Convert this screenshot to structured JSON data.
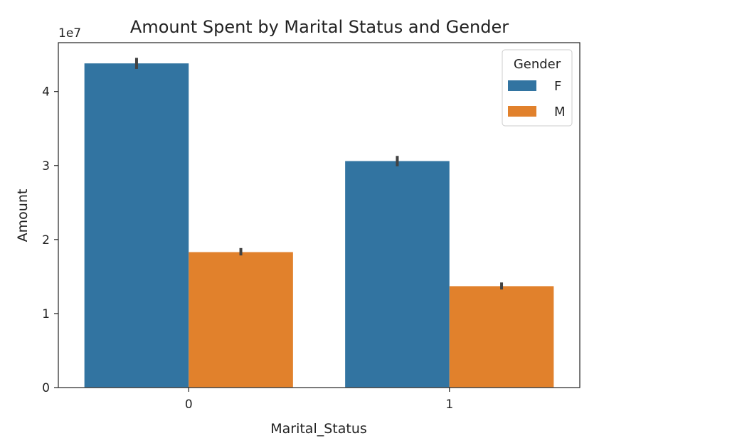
{
  "chart_data": {
    "type": "bar",
    "title": "Amount Spent by Marital Status and Gender",
    "xlabel": "Marital_Status",
    "ylabel": "Amount",
    "offset_text": "1e7",
    "categories": [
      "0",
      "1"
    ],
    "series": [
      {
        "name": "F",
        "color": "#3274a1",
        "values": [
          43800000,
          30600000
        ],
        "error": [
          [
            43050000,
            44550000
          ],
          [
            29900000,
            31300000
          ]
        ]
      },
      {
        "name": "M",
        "color": "#e1812c",
        "values": [
          18300000,
          13700000
        ],
        "error": [
          [
            17850000,
            18850000
          ],
          [
            13250000,
            14200000
          ]
        ]
      }
    ],
    "ylim": [
      0,
      46600000
    ],
    "yticks": [
      {
        "value": 0,
        "label": "0"
      },
      {
        "value": 10000000,
        "label": "1"
      },
      {
        "value": 20000000,
        "label": "2"
      },
      {
        "value": 30000000,
        "label": "3"
      },
      {
        "value": 40000000,
        "label": "4"
      }
    ],
    "legend": {
      "title": "Gender",
      "position": "top-right"
    },
    "grid": false
  }
}
